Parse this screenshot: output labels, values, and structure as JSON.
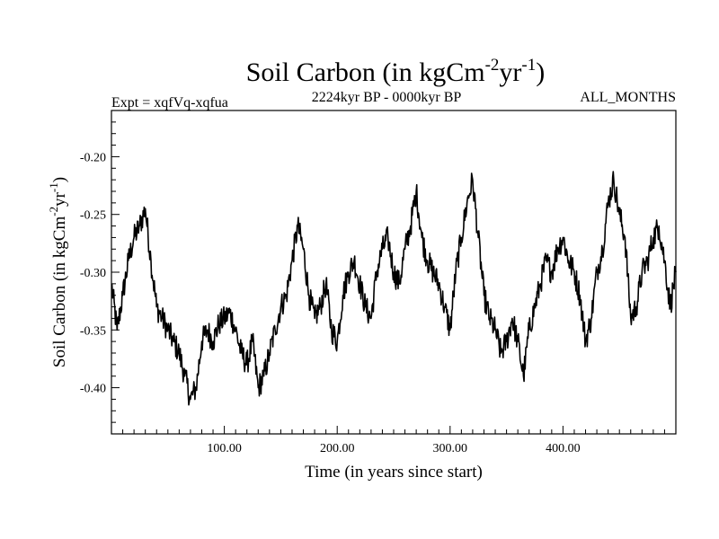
{
  "chart_data": {
    "type": "line",
    "title_main": "Soil Carbon (in kgCm",
    "title_exp1": "-2",
    "title_mid": "yr",
    "title_exp2": "-1",
    "title_end": ")",
    "subtitle_left": "Expt = xqfVq-xqfua",
    "subtitle_center": "2224kyr BP - 0000kyr BP",
    "subtitle_right": "ALL_MONTHS",
    "xlabel": "Time (in years since start)",
    "ylabel_main": "Soil Carbon (in kgCm",
    "ylabel_exp1": "-2",
    "ylabel_mid": "yr",
    "ylabel_exp2": "-1",
    "ylabel_end": ")",
    "xlim": [
      0,
      500
    ],
    "ylim": [
      -0.44,
      -0.16
    ],
    "xticks": [
      {
        "value": 100,
        "label": "100.00"
      },
      {
        "value": 200,
        "label": "200.00"
      },
      {
        "value": 300,
        "label": "300.00"
      },
      {
        "value": 400,
        "label": "400.00"
      }
    ],
    "yticks": [
      {
        "value": -0.4,
        "label": "-0.40"
      },
      {
        "value": -0.35,
        "label": "-0.35"
      },
      {
        "value": -0.3,
        "label": "-0.30"
      },
      {
        "value": -0.25,
        "label": "-0.25"
      },
      {
        "value": -0.2,
        "label": "-0.20"
      }
    ],
    "series": [
      {
        "name": "Soil Carbon",
        "color": "#000000",
        "x": [
          0,
          5,
          10,
          15,
          20,
          25,
          30,
          35,
          40,
          45,
          50,
          55,
          60,
          65,
          70,
          75,
          80,
          85,
          90,
          95,
          100,
          105,
          110,
          115,
          120,
          125,
          130,
          135,
          140,
          145,
          150,
          155,
          160,
          165,
          170,
          175,
          180,
          185,
          190,
          195,
          200,
          205,
          210,
          215,
          220,
          225,
          230,
          235,
          240,
          245,
          250,
          255,
          260,
          265,
          270,
          275,
          280,
          285,
          290,
          295,
          300,
          305,
          310,
          315,
          320,
          325,
          330,
          335,
          340,
          345,
          350,
          355,
          360,
          365,
          370,
          375,
          380,
          385,
          390,
          395,
          400,
          405,
          410,
          415,
          420,
          425,
          430,
          435,
          440,
          445,
          450,
          455,
          460,
          465,
          470,
          475,
          480,
          485,
          490,
          495,
          500
        ],
        "values": [
          -0.31,
          -0.35,
          -0.32,
          -0.29,
          -0.27,
          -0.26,
          -0.245,
          -0.29,
          -0.33,
          -0.34,
          -0.35,
          -0.36,
          -0.37,
          -0.39,
          -0.41,
          -0.4,
          -0.36,
          -0.35,
          -0.36,
          -0.345,
          -0.34,
          -0.335,
          -0.35,
          -0.37,
          -0.38,
          -0.36,
          -0.4,
          -0.39,
          -0.37,
          -0.35,
          -0.33,
          -0.32,
          -0.29,
          -0.26,
          -0.28,
          -0.32,
          -0.34,
          -0.33,
          -0.31,
          -0.35,
          -0.36,
          -0.32,
          -0.3,
          -0.29,
          -0.31,
          -0.33,
          -0.34,
          -0.3,
          -0.28,
          -0.27,
          -0.3,
          -0.31,
          -0.28,
          -0.26,
          -0.23,
          -0.27,
          -0.29,
          -0.3,
          -0.31,
          -0.33,
          -0.35,
          -0.3,
          -0.27,
          -0.24,
          -0.22,
          -0.27,
          -0.32,
          -0.34,
          -0.35,
          -0.37,
          -0.36,
          -0.34,
          -0.36,
          -0.39,
          -0.35,
          -0.33,
          -0.31,
          -0.29,
          -0.3,
          -0.28,
          -0.27,
          -0.29,
          -0.3,
          -0.32,
          -0.36,
          -0.34,
          -0.3,
          -0.28,
          -0.24,
          -0.22,
          -0.25,
          -0.27,
          -0.34,
          -0.33,
          -0.3,
          -0.29,
          -0.27,
          -0.26,
          -0.29,
          -0.33,
          -0.3
        ]
      }
    ]
  }
}
